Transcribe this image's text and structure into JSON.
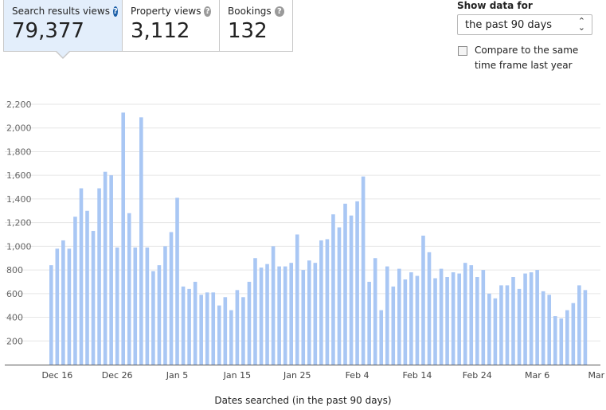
{
  "tabs": [
    {
      "label": "Search results views",
      "value": "79,377",
      "active": true
    },
    {
      "label": "Property views",
      "value": "3,112",
      "active": false
    },
    {
      "label": "Bookings",
      "value": "132",
      "active": false
    }
  ],
  "controls": {
    "show_label": "Show data for",
    "selected": "the past 90 days",
    "compare_label": "Compare to the same time frame last year"
  },
  "colors": {
    "bar": "#a9c7f4",
    "active_tab": "#e3eefb",
    "grid": "#e6e6e6"
  },
  "chart_data": {
    "type": "bar",
    "title": "",
    "xlabel": "Dates searched (in the past 90 days)",
    "ylabel": "",
    "ylim": [
      0,
      2200
    ],
    "yticks": [
      200,
      400,
      600,
      800,
      1000,
      1200,
      1400,
      1600,
      1800,
      2000,
      2200
    ],
    "ytick_labels": [
      "200",
      "400",
      "600",
      "800",
      "1,000",
      "1,200",
      "1,400",
      "1,600",
      "1,800",
      "2,000",
      "2,200"
    ],
    "xtick_labels": [
      "Dec 16",
      "Dec 26",
      "Jan 5",
      "Jan 15",
      "Jan 25",
      "Feb 4",
      "Feb 14",
      "Feb 24",
      "Mar 6",
      "Mar"
    ],
    "xtick_indices": [
      1,
      11,
      21,
      31,
      41,
      51,
      61,
      71,
      81,
      90
    ],
    "values": [
      840,
      980,
      1050,
      980,
      1250,
      1490,
      1300,
      1130,
      1490,
      1630,
      1600,
      990,
      2130,
      1280,
      990,
      2090,
      990,
      790,
      840,
      1000,
      1120,
      1410,
      660,
      640,
      700,
      590,
      610,
      610,
      500,
      570,
      460,
      630,
      570,
      700,
      900,
      820,
      850,
      1000,
      830,
      830,
      860,
      1100,
      800,
      880,
      860,
      1050,
      1060,
      1270,
      1160,
      1360,
      1260,
      1380,
      1590,
      700,
      900,
      460,
      830,
      660,
      810,
      720,
      780,
      750,
      1090,
      950,
      730,
      810,
      740,
      780,
      770,
      860,
      840,
      740,
      800,
      600,
      560,
      670,
      670,
      740,
      640,
      770,
      780,
      800,
      620,
      590,
      410,
      390,
      460,
      520,
      670,
      630
    ]
  }
}
